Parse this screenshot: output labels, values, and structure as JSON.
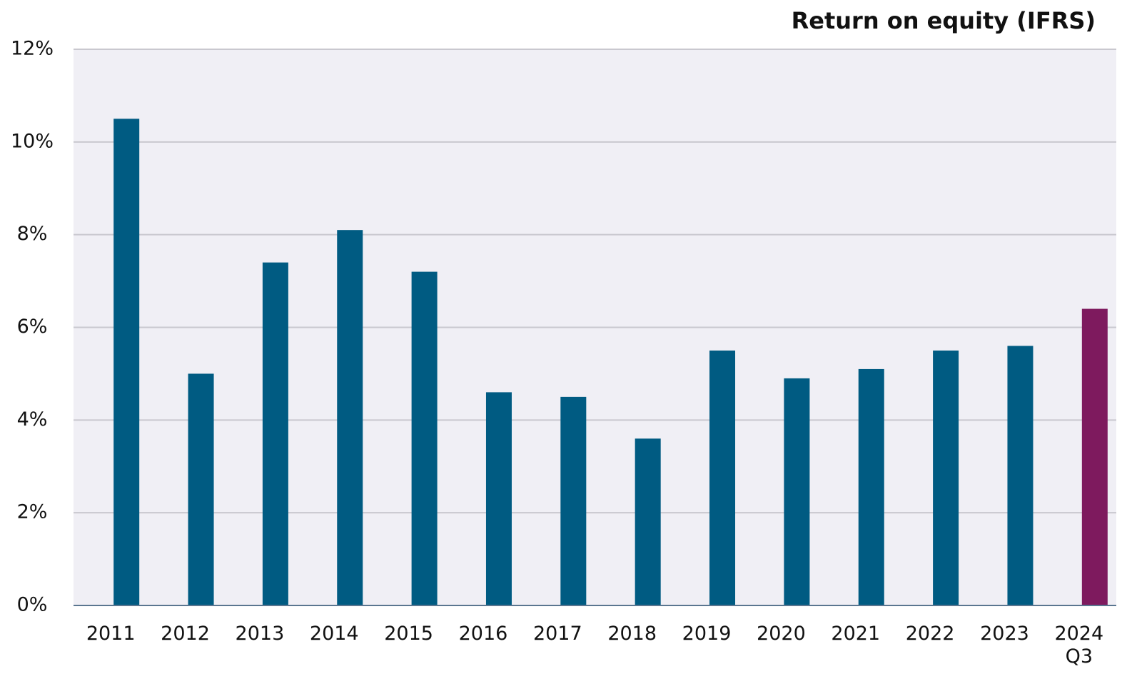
{
  "chart_data": {
    "type": "bar",
    "title": "Return on equity (IFRS)",
    "categories": [
      "2011",
      "2012",
      "2013",
      "2014",
      "2015",
      "2016",
      "2017",
      "2018",
      "2019",
      "2020",
      "2021",
      "2022",
      "2023",
      "2024\nQ3"
    ],
    "values": [
      10.5,
      5.0,
      7.4,
      8.1,
      7.2,
      4.6,
      4.5,
      3.6,
      5.5,
      4.9,
      5.1,
      5.5,
      5.6,
      6.4
    ],
    "colors": [
      "#005b82",
      "#005b82",
      "#005b82",
      "#005b82",
      "#005b82",
      "#005b82",
      "#005b82",
      "#005b82",
      "#005b82",
      "#005b82",
      "#005b82",
      "#005b82",
      "#005b82",
      "#7e1a5e"
    ],
    "ylim": [
      0,
      12
    ],
    "yticks": [
      {
        "value": 0,
        "label": "0%"
      },
      {
        "value": 2,
        "label": "2%"
      },
      {
        "value": 4,
        "label": "4%"
      },
      {
        "value": 6,
        "label": "6%"
      },
      {
        "value": 8,
        "label": "8%"
      },
      {
        "value": 10,
        "label": "10%"
      },
      {
        "value": 12,
        "label": "12%"
      }
    ],
    "grid": true
  }
}
